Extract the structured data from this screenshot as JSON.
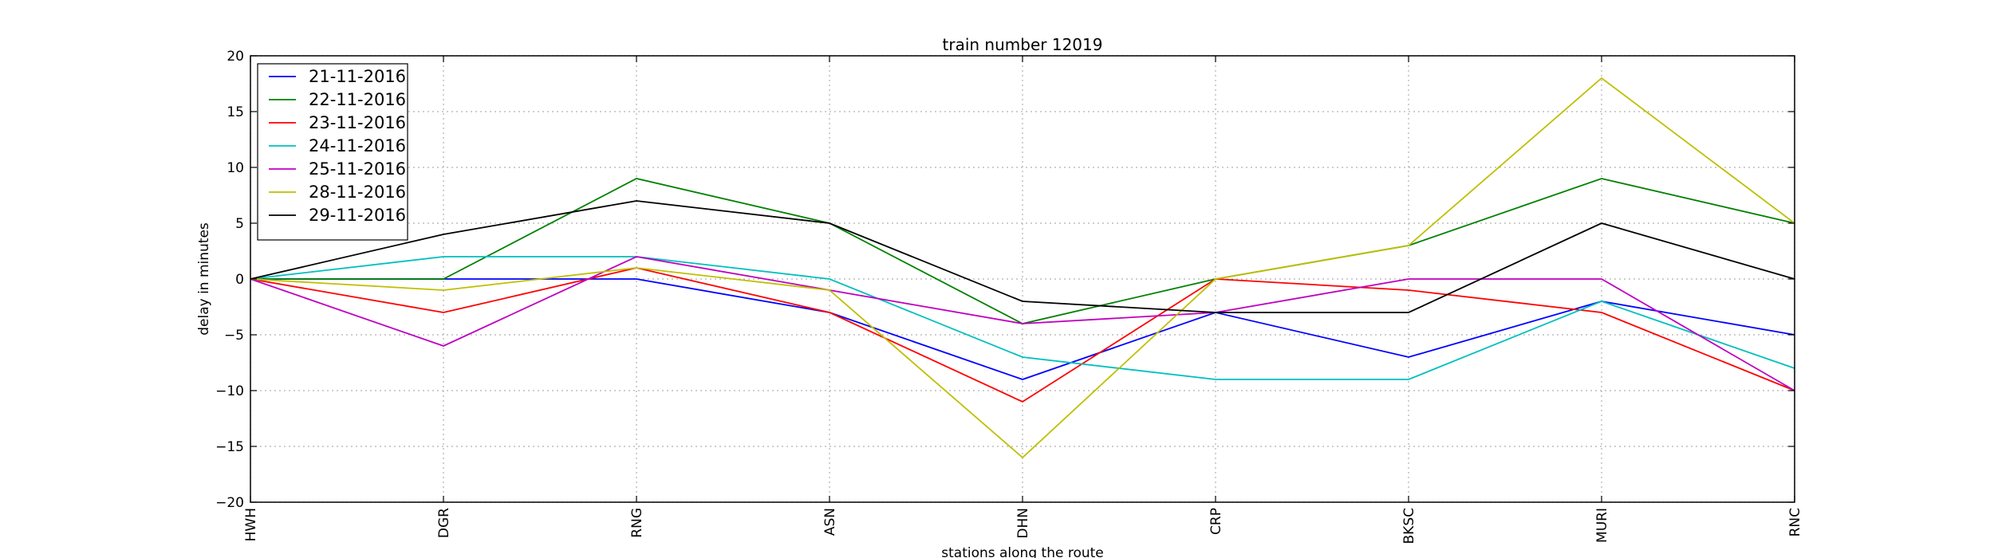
{
  "chart_data": {
    "type": "line",
    "title": "train number 12019",
    "xlabel": "stations along the route",
    "ylabel": "delay in minutes",
    "categories": [
      "HWH",
      "DGR",
      "RNG",
      "ASN",
      "DHN",
      "CRP",
      "BKSC",
      "MURI",
      "RNC"
    ],
    "ylim": [
      -20,
      20
    ],
    "yticks": [
      -20,
      -15,
      -10,
      -5,
      0,
      5,
      10,
      15,
      20
    ],
    "ytick_labels": [
      "−20",
      "−15",
      "−10",
      "−5",
      "0",
      "5",
      "10",
      "15",
      "20"
    ],
    "grid": true,
    "legend_position": "top-left",
    "series": [
      {
        "name": "21-11-2016",
        "color": "#0000ff",
        "values": [
          0,
          0,
          0,
          -3,
          -9,
          -3,
          -7,
          -2,
          -5
        ]
      },
      {
        "name": "22-11-2016",
        "color": "#008000",
        "values": [
          0,
          0,
          9,
          5,
          -4,
          0,
          3,
          9,
          5
        ]
      },
      {
        "name": "23-11-2016",
        "color": "#ff0000",
        "values": [
          0,
          -3,
          1,
          -3,
          -11,
          0,
          -1,
          -3,
          -10
        ]
      },
      {
        "name": "24-11-2016",
        "color": "#00bfbf",
        "values": [
          0,
          2,
          2,
          0,
          -7,
          -9,
          -9,
          -2,
          -8
        ]
      },
      {
        "name": "25-11-2016",
        "color": "#bf00bf",
        "values": [
          0,
          -6,
          2,
          -1,
          -4,
          -3,
          0,
          0,
          -10
        ]
      },
      {
        "name": "28-11-2016",
        "color": "#bfbf00",
        "values": [
          0,
          -1,
          1,
          -1,
          -16,
          0,
          3,
          18,
          5
        ]
      },
      {
        "name": "29-11-2016",
        "color": "#000000",
        "values": [
          0,
          4,
          7,
          5,
          -2,
          -3,
          -3,
          5,
          0
        ]
      }
    ]
  }
}
